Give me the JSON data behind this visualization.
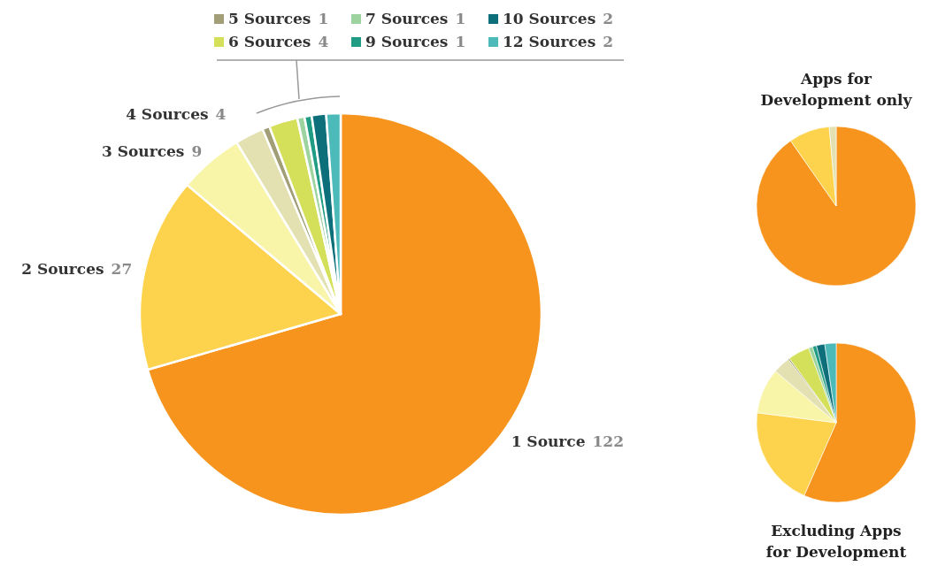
{
  "chart_data": [
    {
      "type": "pie",
      "categories": [
        "1 Source",
        "2 Sources",
        "3 Sources",
        "4 Sources",
        "5 Sources",
        "6 Sources",
        "7 Sources",
        "9 Sources",
        "10 Sources",
        "12 Sources"
      ],
      "values": [
        122,
        27,
        9,
        4,
        1,
        4,
        1,
        1,
        2,
        2
      ],
      "colors": [
        "#f7941e",
        "#fdd34d",
        "#f8f4a8",
        "#e3e1b2",
        "#a19e78",
        "#d5e05a",
        "#9dd39e",
        "#1f9c83",
        "#0c6f7a",
        "#4bbab8"
      ],
      "data_labels": true,
      "legend": "top"
    },
    {
      "type": "pie",
      "title": "Apps for Development only",
      "categories": [
        null,
        null,
        null
      ],
      "values": [
        90.3,
        8.3,
        1.4
      ],
      "colors": [
        "#f7941e",
        "#fdd34d",
        "#e3e1b2"
      ]
    },
    {
      "type": "pie",
      "title": "Excluding Apps for Development",
      "categories": [
        null,
        null,
        null,
        null,
        null,
        null,
        null,
        null,
        null,
        null
      ],
      "values": [
        56.6,
        20.4,
        9.2,
        3.5,
        0.3,
        4.4,
        0.8,
        0.8,
        1.7,
        2.3
      ],
      "colors": [
        "#f7941e",
        "#fdd34d",
        "#f8f4a8",
        "#e3e1b2",
        "#a19e78",
        "#d5e05a",
        "#9dd39e",
        "#1f9c83",
        "#0c6f7a",
        "#4bbab8"
      ]
    }
  ]
}
